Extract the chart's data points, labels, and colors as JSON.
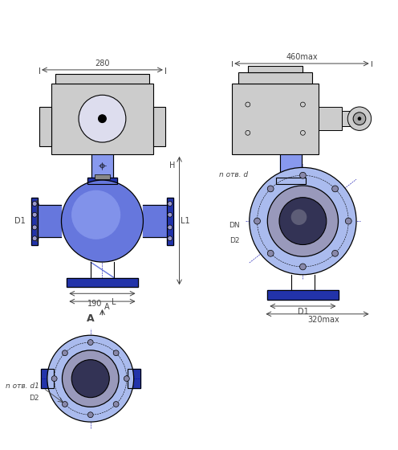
{
  "bg_color": "#ffffff",
  "line_color": "#000000",
  "blue_dark": "#2233aa",
  "blue_mid": "#4455cc",
  "blue_light": "#8899ee",
  "blue_flange": "#3344bb",
  "blue_body": "#6677dd",
  "blue_pale": "#aabbee",
  "gray_dark": "#444444",
  "gray_mid": "#888888",
  "gray_light": "#cccccc",
  "dim_color": "#333333",
  "dim_font": 7,
  "label_font": 7,
  "title_A": "A",
  "dim_280": "280",
  "dim_460": "460max",
  "dim_190": "190",
  "dim_320": "320max",
  "label_H": "H",
  "label_D1": "D1",
  "label_D2": "D2",
  "label_L1": "L1",
  "label_L": "L",
  "label_DN": "DN",
  "label_n_otv_d": "n отв. d",
  "label_n_otv_d1": "n отв. d1",
  "label_A_arrow": "A"
}
